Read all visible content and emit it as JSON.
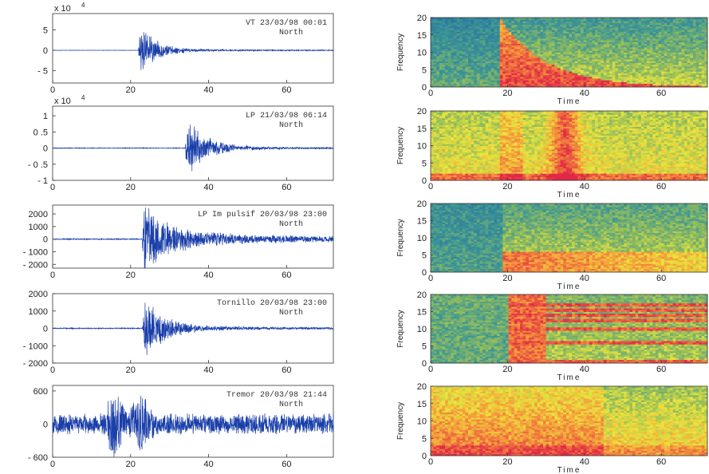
{
  "chart_data": [
    {
      "type": "line",
      "panel": "waveform",
      "title": "VT 23/03/98 00:01",
      "component": "North",
      "exponent_label": "x 10",
      "exponent": "4",
      "xlim": [
        0,
        72
      ],
      "ylim": [
        -8,
        9
      ],
      "xticks": [
        0,
        20,
        40,
        60
      ],
      "yticks": [
        5,
        0,
        -5
      ],
      "ytick_labels": [
        "5",
        "0",
        "- 5"
      ],
      "onset": 22,
      "peak": 7,
      "decay": 4,
      "noise": 0.04,
      "after": 0.25,
      "seed": 11
    },
    {
      "type": "line",
      "panel": "waveform",
      "title": "LP 21/03/98 06:14",
      "component": "North",
      "exponent_label": "x 10",
      "exponent": "4",
      "xlim": [
        0,
        72
      ],
      "ylim": [
        -1,
        1.3
      ],
      "xticks": [
        0,
        20,
        40,
        60
      ],
      "yticks": [
        1,
        0.5,
        0,
        -0.5,
        -1
      ],
      "ytick_labels": [
        "1",
        "0 .5",
        "0",
        "- 0 .5",
        "- 1"
      ],
      "onset": 34,
      "peak": 1.0,
      "decay": 5,
      "noise": 0.012,
      "after": 0.03,
      "seed": 23
    },
    {
      "type": "line",
      "panel": "waveform",
      "title": "LP Im pulsif 20/03/98 23:00",
      "component": "North",
      "xlim": [
        0,
        72
      ],
      "ylim": [
        -2300,
        2700
      ],
      "xticks": [
        0,
        20,
        40,
        60
      ],
      "yticks": [
        2000,
        1000,
        0,
        -1000,
        -2000
      ],
      "ytick_labels": [
        "2000",
        "1000",
        "0",
        "- 1000",
        "- 2000"
      ],
      "onset": 23,
      "peak": 2400,
      "decay": 6,
      "noise": 40,
      "after": 650,
      "seed": 37
    },
    {
      "type": "line",
      "panel": "waveform",
      "title": "Tornillo 20/03/98 23:00",
      "component": "North",
      "xlim": [
        0,
        72
      ],
      "ylim": [
        -2000,
        2000
      ],
      "xticks": [
        0,
        20,
        40,
        60
      ],
      "yticks": [
        2000,
        1000,
        0,
        -1000,
        -2000
      ],
      "ytick_labels": [
        "2000",
        "1000",
        "0",
        "- 1000",
        "- 2000"
      ],
      "onset": 23,
      "peak": 1900,
      "decay": 5,
      "noise": 30,
      "after": 120,
      "seed": 51
    },
    {
      "type": "line",
      "panel": "waveform",
      "title": "Tremor 20/03/98 21:44",
      "component": "North",
      "xlim": [
        0,
        72
      ],
      "ylim": [
        -600,
        700
      ],
      "xticks": [
        0,
        20,
        40,
        60
      ],
      "yticks": [
        600,
        0,
        -600
      ],
      "ytick_labels": [
        "600",
        "0",
        "- 600"
      ],
      "onset": 2,
      "peak": 330,
      "decay": 60,
      "noise": 90,
      "after": 140,
      "seed": 67,
      "tremor": true
    },
    {
      "type": "heatmap",
      "panel": "spectrogram",
      "xlabel": "Time",
      "ylabel": "Frequency",
      "xlim": [
        0,
        72
      ],
      "ylim": [
        0,
        20
      ],
      "xticks": [
        0,
        20,
        40,
        60
      ],
      "yticks": [
        0,
        5,
        10,
        15,
        20
      ],
      "onset": 18,
      "pattern": "vt",
      "seed": 3
    },
    {
      "type": "heatmap",
      "panel": "spectrogram",
      "xlabel": "Time",
      "ylabel": "Frequency",
      "xlim": [
        0,
        72
      ],
      "ylim": [
        0,
        20
      ],
      "xticks": [
        0,
        20,
        40,
        60
      ],
      "yticks": [
        0,
        5,
        10,
        15,
        20
      ],
      "onset": 35,
      "pattern": "lp",
      "seed": 5
    },
    {
      "type": "heatmap",
      "panel": "spectrogram",
      "xlabel": "Time",
      "ylabel": "Frequency",
      "xlim": [
        0,
        72
      ],
      "ylim": [
        0,
        20
      ],
      "xticks": [
        0,
        20,
        40,
        60
      ],
      "yticks": [
        0,
        5,
        10,
        15,
        20
      ],
      "onset": 19,
      "pattern": "lpi",
      "seed": 7
    },
    {
      "type": "heatmap",
      "panel": "spectrogram",
      "xlabel": "Time",
      "ylabel": "Frequency",
      "xlim": [
        0,
        72
      ],
      "ylim": [
        0,
        20
      ],
      "xticks": [
        0,
        20,
        40,
        60
      ],
      "yticks": [
        0,
        5,
        10,
        15,
        20
      ],
      "onset": 20,
      "pattern": "tornillo",
      "bands": [
        6,
        10,
        12.5,
        14,
        15.5,
        17
      ],
      "seed": 9
    },
    {
      "type": "heatmap",
      "panel": "spectrogram",
      "xlabel": "Time",
      "ylabel": "Frequency",
      "xlim": [
        0,
        72
      ],
      "ylim": [
        0,
        20
      ],
      "xticks": [
        0,
        20,
        40,
        60
      ],
      "yticks": [
        0,
        5,
        10,
        15,
        20
      ],
      "onset": 0,
      "pattern": "tremor",
      "seed": 13
    }
  ]
}
